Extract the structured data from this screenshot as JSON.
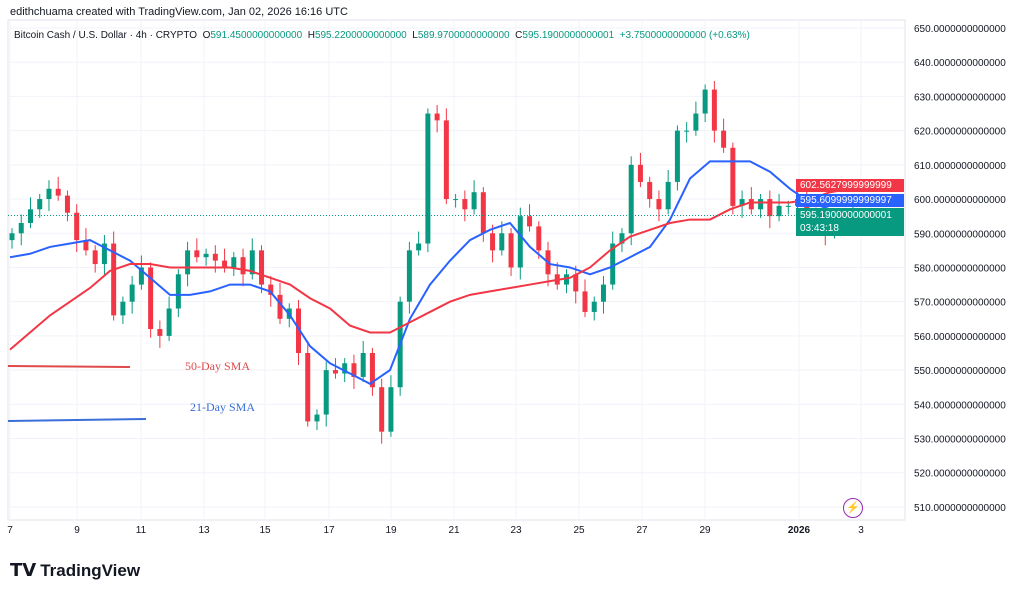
{
  "credit": "edithchuama created with TradingView.com, Jan 02, 2026 16:16 UTC",
  "legend": {
    "symbol": "Bitcoin Cash / U.S. Dollar · 4h · CRYPTO",
    "o_label": "O",
    "o": "591.4500000000000",
    "h_label": "H",
    "h": "595.2200000000000",
    "l_label": "L",
    "l": "589.9700000000000",
    "c_label": "C",
    "c": "595.1900000000001",
    "change": "+3.7500000000000 (+0.63%)"
  },
  "price_labels": {
    "sma50": "602.5627999999999",
    "sma21": "595.6099999999997",
    "last": "595.1900000000001",
    "countdown": "03:43:18"
  },
  "annotations": {
    "sma50": "50-Day SMA",
    "sma21": "21-Day SMA"
  },
  "logo": "TradingView",
  "colors": {
    "up": "#089981",
    "down": "#f23645",
    "sma21": "#2962ff",
    "sma50": "#f23645",
    "sma21_ann": "#3a6fd8",
    "sma50_ann": "#e04a4a"
  },
  "chart_data": {
    "type": "candlestick",
    "interval": "4h",
    "ylim": [
      505,
      652
    ],
    "y_ticks": [
      "650.0000000000000",
      "640.0000000000000",
      "630.0000000000000",
      "620.0000000000000",
      "610.0000000000000",
      "600.0000000000000",
      "590.0000000000000",
      "580.0000000000000",
      "570.0000000000000",
      "560.0000000000000",
      "550.0000000000000",
      "540.0000000000000",
      "530.0000000000000",
      "520.0000000000000",
      "510.0000000000000"
    ],
    "x_ticks": [
      "7",
      "9",
      "11",
      "13",
      "15",
      "17",
      "19",
      "21",
      "23",
      "25",
      "27",
      "29",
      "2026",
      "3"
    ],
    "closes": [
      590,
      593,
      597,
      600,
      603,
      601,
      596,
      588,
      585,
      581,
      587,
      566,
      570,
      575,
      580,
      562,
      560,
      568,
      578,
      585,
      583,
      584,
      582,
      580,
      583,
      578,
      585,
      575,
      572,
      565,
      568,
      555,
      535,
      537,
      550,
      549,
      552,
      548,
      555,
      545,
      532,
      545,
      570,
      585,
      587,
      625,
      623,
      600,
      600,
      597,
      602,
      590,
      585,
      590,
      580,
      595,
      592,
      585,
      578,
      575,
      578,
      573,
      567,
      570,
      575,
      587,
      590,
      610,
      605,
      600,
      597,
      605,
      620,
      620,
      625,
      632,
      620,
      615,
      598,
      600,
      597,
      600,
      595,
      598,
      598,
      600,
      596,
      595,
      590,
      592,
      594,
      595.19
    ],
    "series": [
      {
        "name": "21-Day SMA",
        "values": [
          583,
          584,
          586,
          587,
          588,
          585,
          582,
          577,
          572,
          572,
          573,
          575,
          575,
          573,
          566,
          557,
          552,
          549,
          546,
          550,
          565,
          575,
          582,
          588,
          591,
          593,
          586,
          581,
          580,
          578,
          580,
          583,
          586,
          594,
          606,
          611,
          611,
          611,
          608,
          603,
          599,
          597,
          596
        ]
      },
      {
        "name": "50-Day SMA",
        "values": [
          556,
          561,
          566,
          570,
          574,
          579,
          581,
          581,
          580,
          580,
          580,
          580,
          579,
          577,
          575,
          571,
          568,
          563,
          561,
          561,
          564,
          567,
          570,
          572,
          573,
          574,
          575,
          576,
          577,
          580,
          585,
          589,
          591,
          593,
          594,
          594,
          597,
          599,
          599,
          599,
          600,
          602,
          603
        ]
      }
    ],
    "last_price": 595.19
  }
}
